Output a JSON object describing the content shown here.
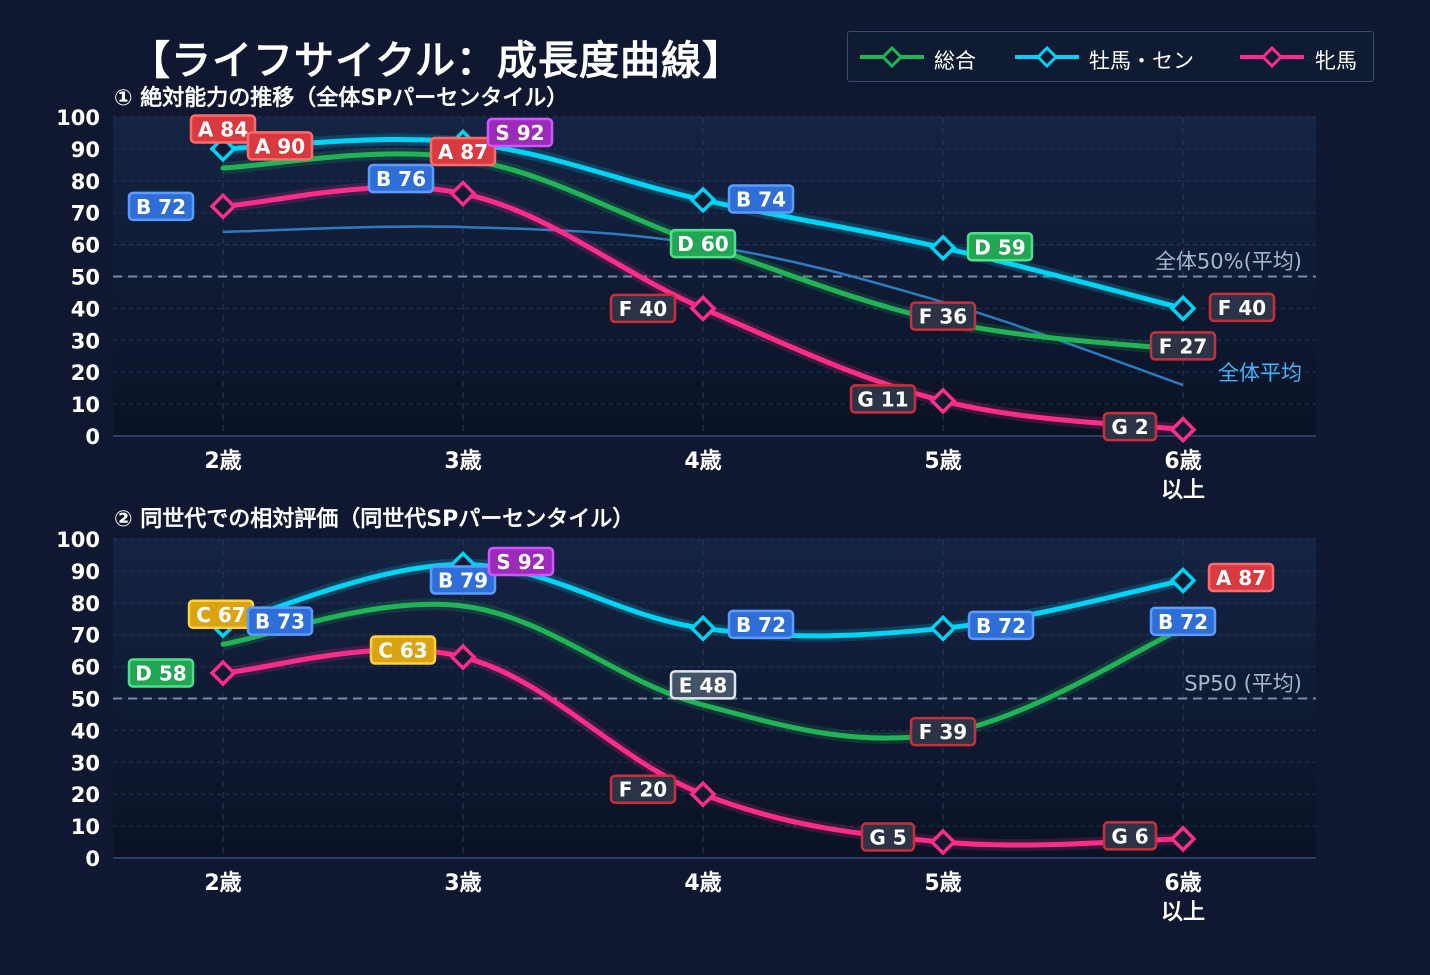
{
  "title": "【ライフサイクル：成長度曲線】",
  "legend": [
    {
      "name": "総合",
      "color": "#22b357"
    },
    {
      "name": "牡馬・セン",
      "color": "#00d4f5"
    },
    {
      "name": "牝馬",
      "color": "#ff2d8a"
    }
  ],
  "chart_data": [
    {
      "type": "line",
      "title": "① 絶対能力の推移（全体SPパーセンタイル）",
      "categories": [
        "2歳",
        "3歳",
        "4歳",
        "5歳",
        "6歳\n以上"
      ],
      "yticks": [
        0,
        10,
        20,
        30,
        40,
        50,
        60,
        70,
        80,
        90,
        100
      ],
      "ylim": [
        0,
        100
      ],
      "grid": true,
      "reference_line": {
        "value": 50,
        "label": "全体50%(平均)"
      },
      "average_curve": {
        "label": "全体平均",
        "values": [
          64,
          65.5,
          60,
          42,
          16
        ],
        "color": "#2a7cc0"
      },
      "series": [
        {
          "name": "総合",
          "values": [
            84,
            87,
            60,
            36,
            27
          ],
          "labels": [
            "A 84",
            "A 87",
            "D 60",
            "F 36",
            "F 27"
          ]
        },
        {
          "name": "牡馬・セン",
          "values": [
            90,
            92,
            74,
            59,
            40
          ],
          "labels": [
            "A 90",
            "S 92",
            "B 74",
            "D 59",
            "F 40"
          ]
        },
        {
          "name": "牝馬",
          "values": [
            72,
            76,
            40,
            11,
            2
          ],
          "labels": [
            "B 72",
            "B 76",
            "F 40",
            "G 11",
            "G 2"
          ]
        }
      ]
    },
    {
      "type": "line",
      "title": "② 同世代での相対評価（同世代SPパーセンタイル）",
      "categories": [
        "2歳",
        "3歳",
        "4歳",
        "5歳",
        "6歳\n以上"
      ],
      "yticks": [
        0,
        10,
        20,
        30,
        40,
        50,
        60,
        70,
        80,
        90,
        100
      ],
      "ylim": [
        0,
        100
      ],
      "grid": true,
      "reference_line": {
        "value": 50,
        "label": "SP50 (平均)"
      },
      "series": [
        {
          "name": "総合",
          "values": [
            67,
            79,
            48,
            39,
            72
          ],
          "labels": [
            "C 67",
            "B 79",
            "E 48",
            "F 39",
            "B 72"
          ]
        },
        {
          "name": "牡馬・セン",
          "values": [
            73,
            92,
            72,
            72,
            87
          ],
          "labels": [
            "B 73",
            "S 92",
            "B 72",
            "B 72",
            "A 87"
          ]
        },
        {
          "name": "牝馬",
          "values": [
            58,
            63,
            20,
            5,
            6
          ],
          "labels": [
            "D 58",
            "C 63",
            "F 20",
            "G 5",
            "G 6"
          ]
        }
      ]
    }
  ]
}
